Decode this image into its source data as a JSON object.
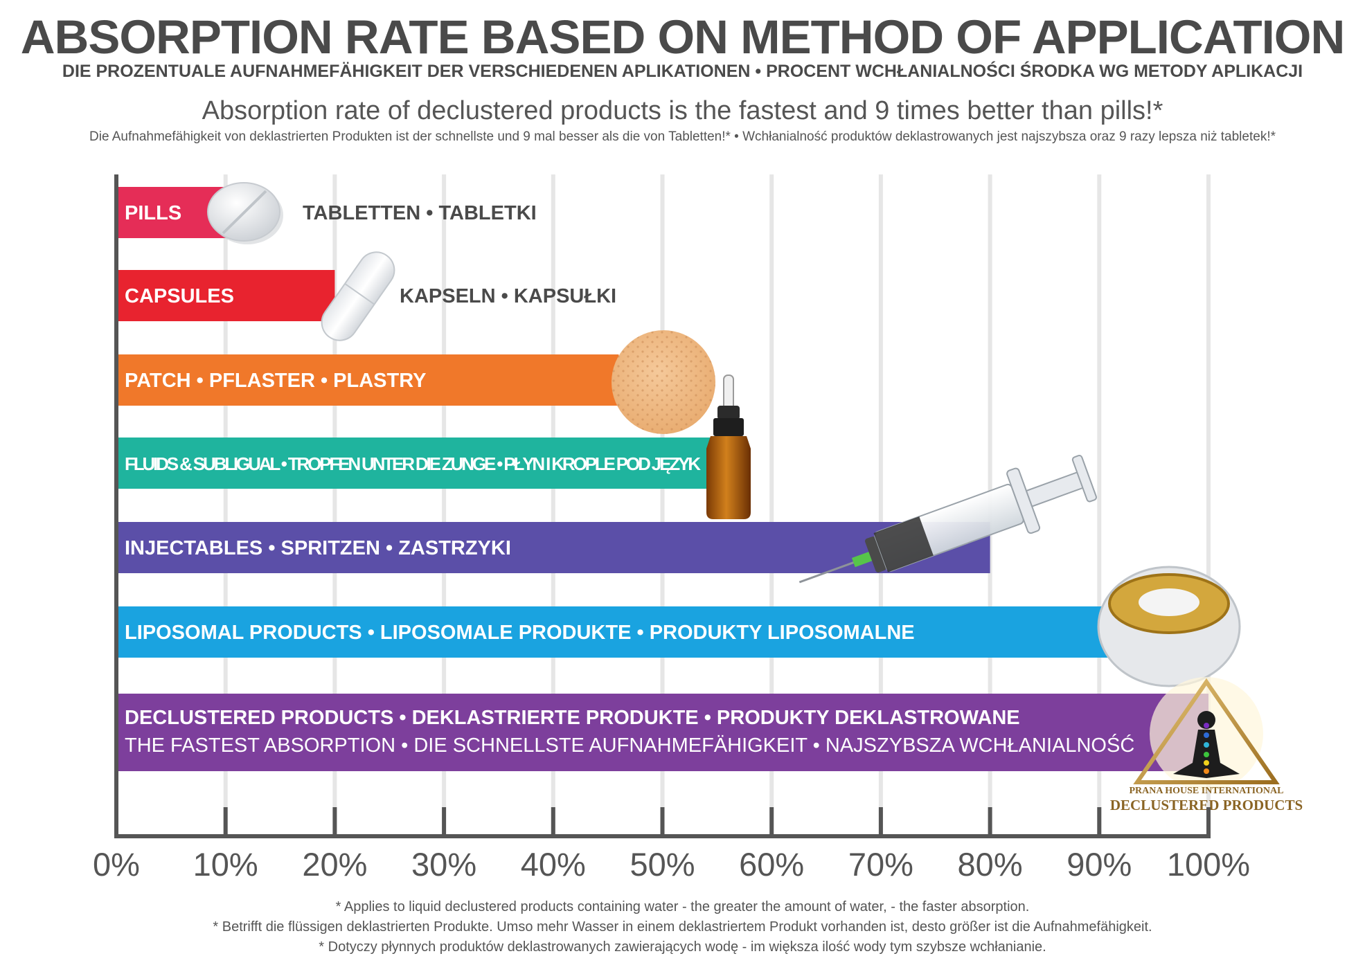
{
  "header": {
    "title": "ABSORPTION RATE BASED ON METHOD OF APPLICATION",
    "subtitle": "DIE PROZENTUALE AUFNAHMEFÄHIGKEIT DER VERSCHIEDENEN APLIKATIONEN • PROCENT WCHŁANIALNOŚCI ŚRODKA WG METODY APLIKACJI",
    "tagline": "Absorption rate of declustered products is the fastest and 9 times better than pills!*",
    "tagline_sub": "Die Aufnahmefähigkeit von deklastrierten Produkten ist der schnellste und 9 mal besser als die von Tabletten!* • Wchłanialność produktów deklastrowanych jest najszybsza oraz 9 razy lepsza niż tabletek!*"
  },
  "chart_data": {
    "type": "bar",
    "orientation": "horizontal",
    "categories": [
      "PILLS",
      "CAPSULES",
      "PATCH • PFLASTER • PLASTRY",
      "FLUIDS & SUBLIGUAL • TROPFEN UNTER DIE ZUNGE • PŁYN I KROPLE POD JĘZYK",
      "INJECTABLES • SPRITZEN • ZASTRZYKI",
      "LIPOSOMAL PRODUCTS • LIPOSOMALE PRODUKTE • PRODUKTY LIPOSOMALNE",
      "DECLUSTERED PRODUCTS • DEKLASTRIERTE PRODUKTE • PRODUKTY DEKLASTROWANE"
    ],
    "side_labels": [
      "TABLETTEN • TABLETKI",
      "KAPSELN • KAPSUŁKI",
      "",
      "",
      "",
      "",
      ""
    ],
    "second_lines": [
      "",
      "",
      "",
      "",
      "",
      "",
      "THE FASTEST ABSORPTION • DIE SCHNELLSTE AUFNAHMEFÄHIGKEIT • NAJSZYBSZA WCHŁANIALNOŚĆ"
    ],
    "values": [
      10,
      20,
      46,
      55,
      80,
      95,
      100
    ],
    "colors": [
      "#e52d57",
      "#e8232f",
      "#f0782a",
      "#1fb49e",
      "#5b4fa8",
      "#1aa3e0",
      "#7d3f9c"
    ],
    "x_ticks": [
      "0%",
      "10%",
      "20%",
      "30%",
      "40%",
      "50%",
      "60%",
      "70%",
      "80%",
      "90%",
      "100%"
    ],
    "xlim": [
      0,
      100
    ],
    "grid": true
  },
  "logo": {
    "line1": "PRANA HOUSE INTERNATIONAL",
    "line2": "DECLUSTERED PRODUCTS"
  },
  "footnotes": [
    "* Applies to liquid declustered products containing water - the greater the amount of water, - the faster absorption.",
    "* Betrifft die flüssigen deklastrierten Produkte. Umso mehr Wasser in einem deklastriertem Produkt vorhanden ist, desto größer ist die Aufnahmefähigkeit.",
    "* Dotyczy płynnych produktów deklastrowanych zawierających wodę - im większa ilość wody tym szybsze wchłanianie."
  ]
}
